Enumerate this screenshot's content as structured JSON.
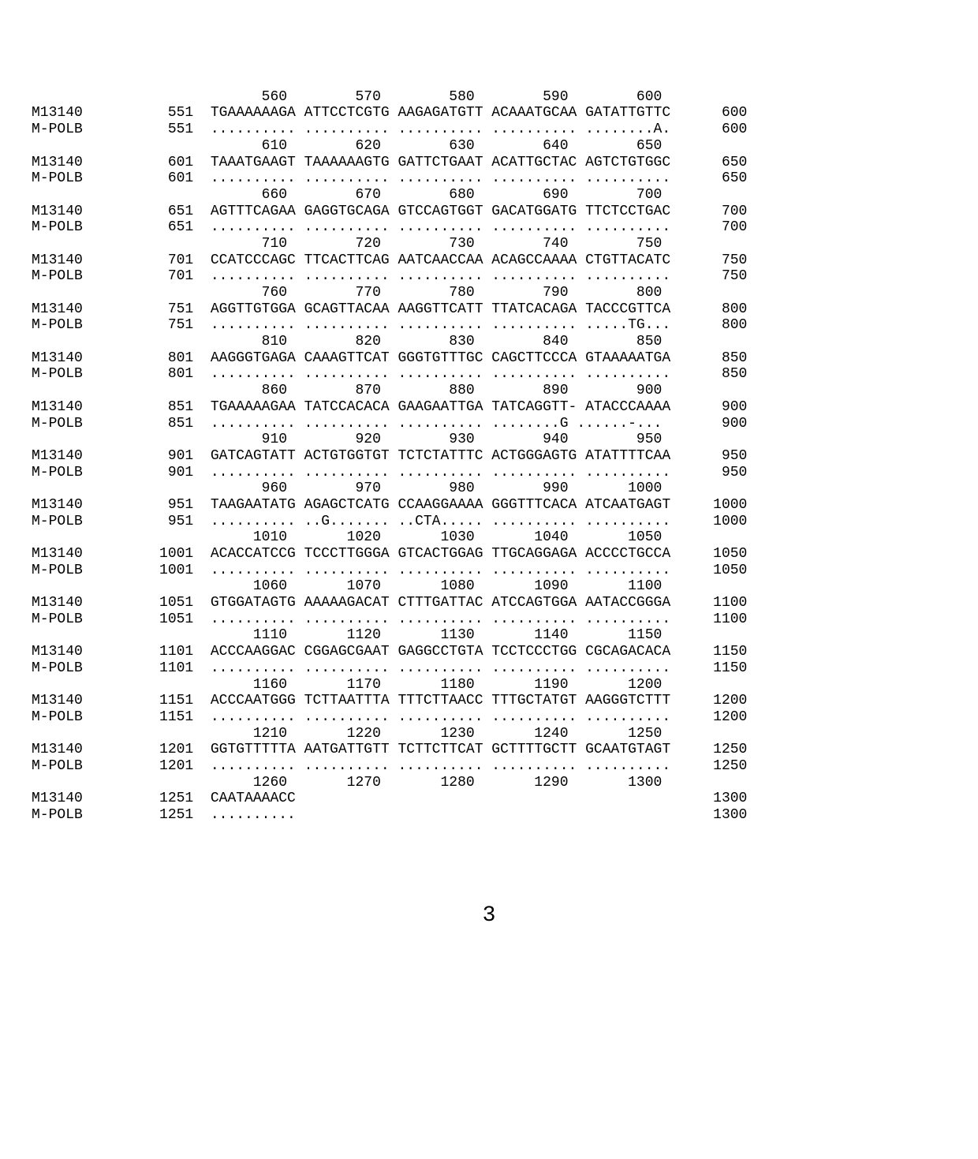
{
  "styling": {
    "font_family": "Courier New, monospace",
    "font_size_pt": 14,
    "background_color": "#ffffff",
    "text_color": "#000000",
    "page_number_font_size_pt": 22
  },
  "sequence_labels": {
    "seq1": "M13140",
    "seq2": "M-POLB"
  },
  "page_number": "3",
  "alignment_blocks": [
    {
      "ruler": "                           560        570        580        590        600",
      "rows": [
        {
          "label": "M13140",
          "start": "551",
          "seq": "TGAAAAAAGA ATTCCTCGTG AAGAGATGTT ACAAATGCAA GATATTGTTC",
          "end": "600"
        },
        {
          "label": "M-POLB",
          "start": "551",
          "seq": ".......... .......... .......... .......... ........A.",
          "end": "600"
        }
      ]
    },
    {
      "ruler": "                           610        620        630        640        650",
      "rows": [
        {
          "label": "M13140",
          "start": "601",
          "seq": "TAAATGAAGT TAAAAAAGTG GATTCTGAAT ACATTGCTAC AGTCTGTGGC",
          "end": "650"
        },
        {
          "label": "M-POLB",
          "start": "601",
          "seq": ".......... .......... .......... .......... ..........",
          "end": "650"
        }
      ]
    },
    {
      "ruler": "                           660        670        680        690        700",
      "rows": [
        {
          "label": "M13140",
          "start": "651",
          "seq": "AGTTTCAGAA GAGGTGCAGA GTCCAGTGGT GACATGGATG TTCTCCTGAC",
          "end": "700"
        },
        {
          "label": "M-POLB",
          "start": "651",
          "seq": ".......... .......... .......... .......... ..........",
          "end": "700"
        }
      ]
    },
    {
      "ruler": "                           710        720        730        740        750",
      "rows": [
        {
          "label": "M13140",
          "start": "701",
          "seq": "CCATCCCAGC TTCACTTCAG AATCAACCAA ACAGCCAAAA CTGTTACATC",
          "end": "750"
        },
        {
          "label": "M-POLB",
          "start": "701",
          "seq": ".......... .......... .......... .......... ..........",
          "end": "750"
        }
      ]
    },
    {
      "ruler": "                           760        770        780        790        800",
      "rows": [
        {
          "label": "M13140",
          "start": "751",
          "seq": "AGGTTGTGGA GCAGTTACAA AAGGTTCATT TTATCACAGA TACCCGTTCA",
          "end": "800"
        },
        {
          "label": "M-POLB",
          "start": "751",
          "seq": ".......... .......... .......... .......... .....TG...",
          "end": "800"
        }
      ]
    },
    {
      "ruler": "                           810        820        830        840        850",
      "rows": [
        {
          "label": "M13140",
          "start": "801",
          "seq": "AAGGGTGAGA CAAAGTTCAT GGGTGTTTGC CAGCTTCCCA GTAAAAATGA",
          "end": "850"
        },
        {
          "label": "M-POLB",
          "start": "801",
          "seq": ".......... .......... .......... .......... ..........",
          "end": "850"
        }
      ]
    },
    {
      "ruler": "                           860        870        880        890        900",
      "rows": [
        {
          "label": "M13140",
          "start": "851",
          "seq": "TGAAAAAGAA TATCCACACA GAAGAATTGA TATCAGGTT- ATACCCAAAA",
          "end": "900"
        },
        {
          "label": "M-POLB",
          "start": "851",
          "seq": ".......... .......... .......... ........G ......-...",
          "end": "900"
        }
      ]
    },
    {
      "ruler": "                           910        920        930        940        950",
      "rows": [
        {
          "label": "M13140",
          "start": "901",
          "seq": "GATCAGTATT ACTGTGGTGT TCTCTATTTC ACTGGGAGTG ATATTTTCAA",
          "end": "950"
        },
        {
          "label": "M-POLB",
          "start": "901",
          "seq": ".......... .......... .......... .......... ..........",
          "end": "950"
        }
      ]
    },
    {
      "ruler": "                           960        970        980        990       1000",
      "rows": [
        {
          "label": "M13140",
          "start": "951",
          "seq": "TAAGAATATG AGAGCTCATG CCAAGGAAAA GGGTTTCACA ATCAATGAGT",
          "end": "1000"
        },
        {
          "label": "M-POLB",
          "start": "951",
          "seq": ".......... ..G....... ..CTA..... .......... ..........",
          "end": "1000"
        }
      ]
    },
    {
      "ruler": "                          1010       1020       1030       1040       1050",
      "rows": [
        {
          "label": "M13140",
          "start": "1001",
          "seq": "ACACCATCCG TCCCTTGGGA GTCACTGGAG TTGCAGGAGA ACCCCTGCCA",
          "end": "1050"
        },
        {
          "label": "M-POLB",
          "start": "1001",
          "seq": ".......... .......... .......... .......... ..........",
          "end": "1050"
        }
      ]
    },
    {
      "ruler": "                          1060       1070       1080       1090       1100",
      "rows": [
        {
          "label": "M13140",
          "start": "1051",
          "seq": "GTGGATAGTG AAAAAGACAT CTTTGATTAC ATCCAGTGGA AATACCGGGA",
          "end": "1100"
        },
        {
          "label": "M-POLB",
          "start": "1051",
          "seq": ".......... .......... .......... .......... ..........",
          "end": "1100"
        }
      ]
    },
    {
      "ruler": "                          1110       1120       1130       1140       1150",
      "rows": [
        {
          "label": "M13140",
          "start": "1101",
          "seq": "ACCCAAGGAC CGGAGCGAAT GAGGCCTGTA TCCTCCCTGG CGCAGACACA",
          "end": "1150"
        },
        {
          "label": "M-POLB",
          "start": "1101",
          "seq": ".......... .......... .......... .......... ..........",
          "end": "1150"
        }
      ]
    },
    {
      "ruler": "                          1160       1170       1180       1190       1200",
      "rows": [
        {
          "label": "M13140",
          "start": "1151",
          "seq": "ACCCAATGGG TCTTAATTTA TTTCTTAACC TTTGCTATGT AAGGGTCTTT",
          "end": "1200"
        },
        {
          "label": "M-POLB",
          "start": "1151",
          "seq": ".......... .......... .......... .......... ..........",
          "end": "1200"
        }
      ]
    },
    {
      "ruler": "                          1210       1220       1230       1240       1250",
      "rows": [
        {
          "label": "M13140",
          "start": "1201",
          "seq": "GGTGTTTTTA AATGATTGTT TCTTCTTCAT GCTTTTGCTT GCAATGTAGT",
          "end": "1250"
        },
        {
          "label": "M-POLB",
          "start": "1201",
          "seq": ".......... .......... .......... .......... ..........",
          "end": "1250"
        }
      ]
    },
    {
      "ruler": "                          1260       1270       1280       1290       1300",
      "rows": [
        {
          "label": "M13140",
          "start": "1251",
          "seq": "CAATAAAACC",
          "end": "1300"
        },
        {
          "label": "M-POLB",
          "start": "1251",
          "seq": "..........",
          "end": "1300"
        }
      ]
    }
  ]
}
